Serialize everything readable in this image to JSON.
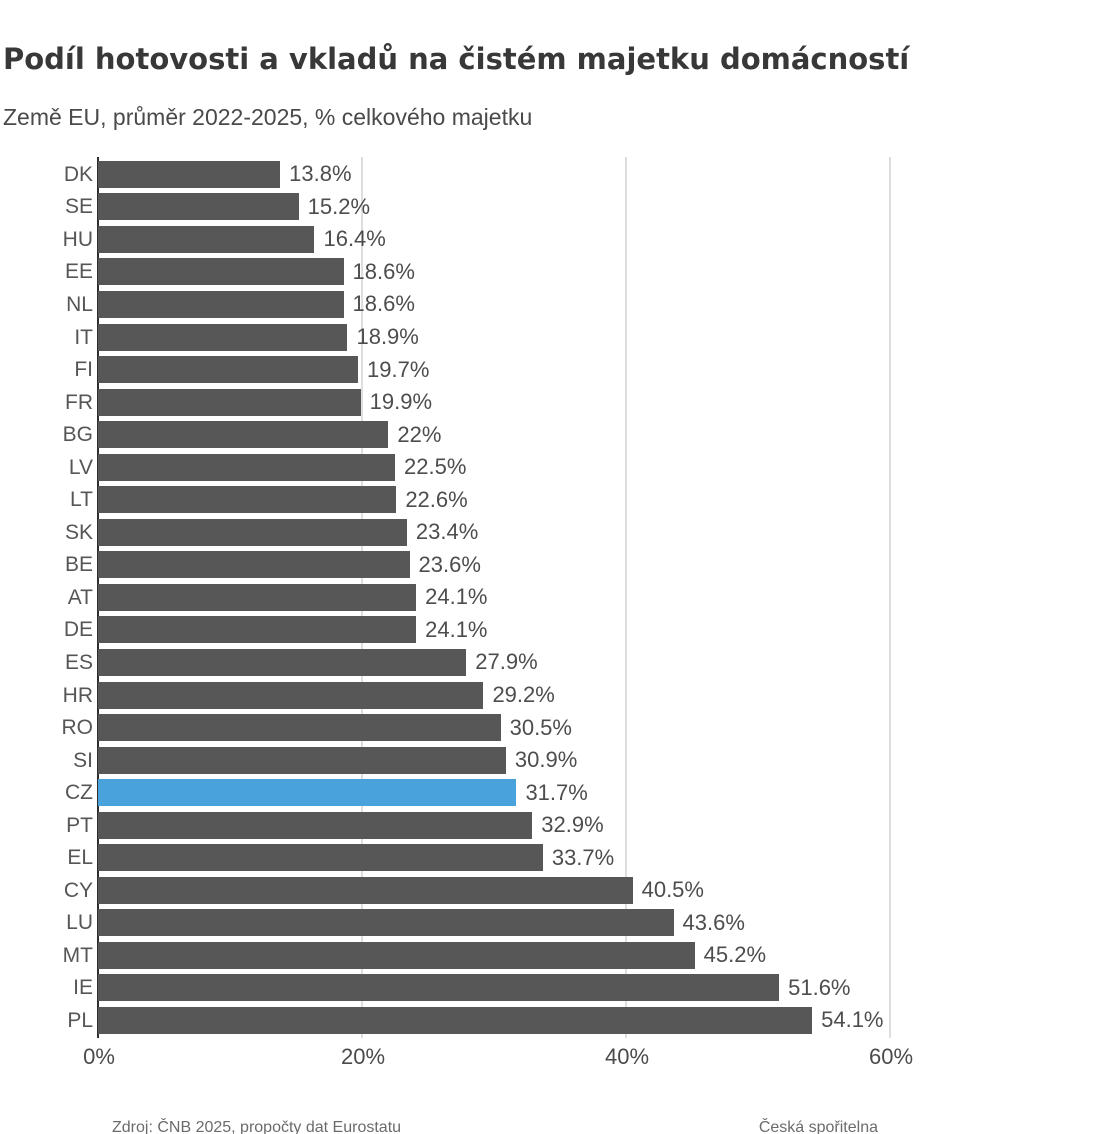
{
  "header": {
    "title": "Podíl hotovosti a vkladů na čistém majetku domácností",
    "subtitle": "Země EU, průměr 2022-2025, % celkového majetku"
  },
  "chart_data": {
    "type": "bar",
    "orientation": "horizontal",
    "title": "Podíl hotovosti a vkladů na čistém majetku domácností",
    "subtitle": "Země EU, průměr 2022-2025, % celkového majetku",
    "categories": [
      "DK",
      "SE",
      "HU",
      "EE",
      "NL",
      "IT",
      "FI",
      "FR",
      "BG",
      "LV",
      "LT",
      "SK",
      "BE",
      "AT",
      "DE",
      "ES",
      "HR",
      "RO",
      "SI",
      "CZ",
      "PT",
      "EL",
      "CY",
      "LU",
      "MT",
      "IE",
      "PL"
    ],
    "values": [
      13.8,
      15.2,
      16.4,
      18.6,
      18.6,
      18.9,
      19.7,
      19.9,
      22,
      22.5,
      22.6,
      23.4,
      23.6,
      24.1,
      24.1,
      27.9,
      29.2,
      30.5,
      30.9,
      31.7,
      32.9,
      33.7,
      40.5,
      43.6,
      45.2,
      51.6,
      54.1
    ],
    "value_labels": [
      "13.8%",
      "15.2%",
      "16.4%",
      "18.6%",
      "18.6%",
      "18.9%",
      "19.7%",
      "19.9%",
      "22%",
      "22.5%",
      "22.6%",
      "23.4%",
      "23.6%",
      "24.1%",
      "24.1%",
      "27.9%",
      "29.2%",
      "30.5%",
      "30.9%",
      "31.7%",
      "32.9%",
      "33.7%",
      "40.5%",
      "43.6%",
      "45.2%",
      "51.6%",
      "54.1%"
    ],
    "highlight_category": "CZ",
    "x_ticks": [
      "0%",
      "20%",
      "40%",
      "60%"
    ],
    "x_tick_values": [
      0,
      20,
      40,
      60
    ],
    "xlim": [
      0,
      60
    ],
    "xlabel": "",
    "ylabel": "",
    "grid": "vertical gridlines at 20/40/60, dark zero axis line",
    "legend": "none",
    "colors": {
      "bar": "#575757",
      "highlight": "#4aa2dc",
      "gridline": "#dedede",
      "axis_line": "#2e2e2e",
      "value_label": "#4d4d4d",
      "category_label": "#565656"
    }
  },
  "footer": {
    "left": "Zdroj: ČNB 2025, propočty dat Eurostatu",
    "right": "Česká spořitelna"
  }
}
